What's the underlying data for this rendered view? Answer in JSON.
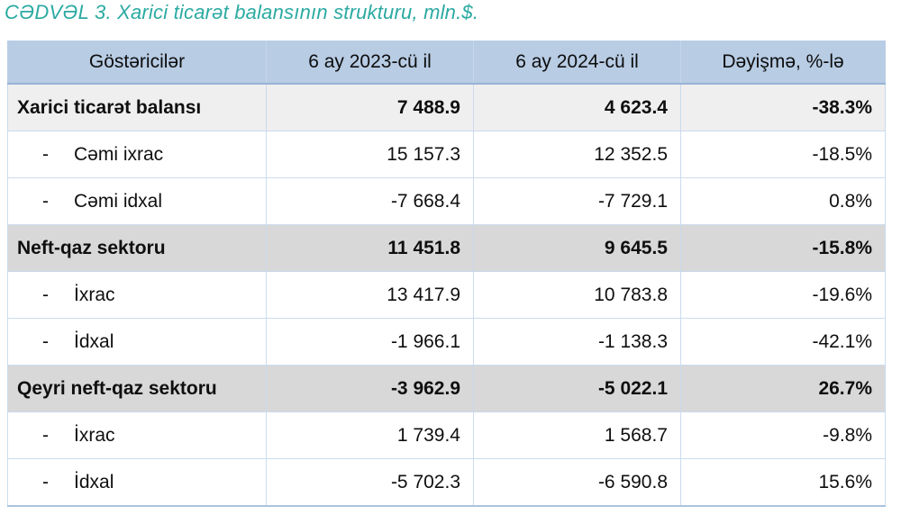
{
  "title": "CƏDVƏL 3. Xarici ticarət balansının strukturu, mln.$.",
  "table": {
    "columns": [
      "Göstəricilər",
      "6 ay 2023-cü il",
      "6 ay 2024-cü il",
      "Dəyişmə, %-lə"
    ],
    "rows": [
      {
        "label": "Xarici ticarət balansı",
        "dash": false,
        "style": "subtotal",
        "y2023": "7 488.9",
        "y2024": "4 623.4",
        "change": "-38.3%"
      },
      {
        "label": "Cəmi ixrac",
        "dash": true,
        "style": "detail",
        "y2023": "15 157.3",
        "y2024": "12 352.5",
        "change": "-18.5%"
      },
      {
        "label": "Cəmi idxal",
        "dash": true,
        "style": "detail",
        "y2023": "-7 668.4",
        "y2024": "-7 729.1",
        "change": "0.8%"
      },
      {
        "label": "Neft-qaz sektoru",
        "dash": false,
        "style": "section",
        "y2023": "11 451.8",
        "y2024": "9 645.5",
        "change": "-15.8%"
      },
      {
        "label": "İxrac",
        "dash": true,
        "style": "detail",
        "y2023": "13 417.9",
        "y2024": "10 783.8",
        "change": "-19.6%"
      },
      {
        "label": "İdxal",
        "dash": true,
        "style": "detail",
        "y2023": "-1 966.1",
        "y2024": "-1 138.3",
        "change": "-42.1%"
      },
      {
        "label": "Qeyri neft-qaz sektoru",
        "dash": false,
        "style": "section",
        "y2023": "-3 962.9",
        "y2024": "-5 022.1",
        "change": "26.7%"
      },
      {
        "label": "İxrac",
        "dash": true,
        "style": "detail",
        "y2023": "1 739.4",
        "y2024": "1 568.7",
        "change": "-9.8%"
      },
      {
        "label": "İdxal",
        "dash": true,
        "style": "detail",
        "y2023": "-5 702.3",
        "y2024": "-6 590.8",
        "change": "15.6%"
      }
    ]
  },
  "colors": {
    "title_accent": "#2baaa2",
    "header_bg": "#b8cce4",
    "subtotal_row_bg": "#f0efef",
    "section_row_bg": "#d8d8d8",
    "grid_border": "#ccdcee",
    "text": "#0f0f0f"
  }
}
